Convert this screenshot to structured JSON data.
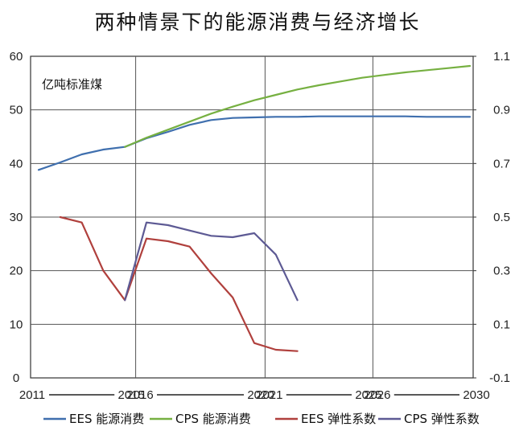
{
  "chart_data": {
    "type": "line",
    "title": "两种情景下的能源消费与经济增长",
    "annotation": "亿吨标准煤",
    "ylim_left": [
      0,
      60
    ],
    "ylim_right": [
      -0.1,
      1.1
    ],
    "y_ticks_left": [
      "0",
      "10",
      "20",
      "30",
      "40",
      "50",
      "60"
    ],
    "y_ticks_right": [
      "-0.1",
      "0.1",
      "0.3",
      "0.5",
      "0.7",
      "0.9",
      "1.1"
    ],
    "x_ticks": [
      "2011",
      "2015",
      "2016",
      "2020",
      "2021",
      "2025",
      "2026",
      "2030"
    ],
    "x_groups": [
      {
        "start": "2011",
        "end": "2015",
        "from": 0,
        "to": 4
      },
      {
        "start": "2016",
        "end": "2020",
        "from": 5,
        "to": 10
      },
      {
        "start": "2021",
        "end": "2025",
        "from": 11,
        "to": 15
      },
      {
        "start": "2026",
        "end": "2030",
        "from": 16,
        "to": 20
      }
    ],
    "grid": true,
    "legend_position": "bottom",
    "series": [
      {
        "name": "EES 能源消费",
        "axis": "left",
        "color": "#3f6fae",
        "x": [
          0,
          1,
          2,
          3,
          4,
          5,
          6,
          7,
          8,
          9,
          10,
          11,
          12,
          13,
          14,
          15,
          16,
          17,
          18,
          19,
          20
        ],
        "values": [
          38.8,
          40.2,
          41.7,
          42.6,
          43.1,
          44.7,
          45.9,
          47.2,
          48.1,
          48.5,
          48.6,
          48.7,
          48.7,
          48.8,
          48.8,
          48.8,
          48.8,
          48.8,
          48.7,
          48.7,
          48.7
        ]
      },
      {
        "name": "CPS 能源消费",
        "axis": "left",
        "color": "#76b041",
        "x": [
          4,
          5,
          6,
          7,
          8,
          9,
          10,
          11,
          12,
          13,
          14,
          15,
          16,
          17,
          18,
          19,
          20
        ],
        "values": [
          43.1,
          44.8,
          46.3,
          47.8,
          49.3,
          50.6,
          51.8,
          52.8,
          53.8,
          54.6,
          55.3,
          56.0,
          56.5,
          57.0,
          57.4,
          57.8,
          58.2
        ]
      },
      {
        "name": "EES 弹性系数",
        "axis": "right",
        "color": "#b0403d",
        "x": [
          1,
          2,
          3,
          4,
          5,
          6,
          7,
          8,
          9,
          10,
          11,
          12
        ],
        "values": [
          0.5,
          0.48,
          0.3,
          0.19,
          0.42,
          0.41,
          0.39,
          0.29,
          0.2,
          0.03,
          0.005,
          0.0
        ]
      },
      {
        "name": "CPS 弹性系数",
        "axis": "right",
        "color": "#5d5a94",
        "x": [
          4,
          5,
          6,
          7,
          8,
          9,
          10,
          11,
          12
        ],
        "values": [
          0.19,
          0.48,
          0.47,
          0.45,
          0.43,
          0.425,
          0.44,
          0.36,
          0.19
        ]
      }
    ]
  }
}
